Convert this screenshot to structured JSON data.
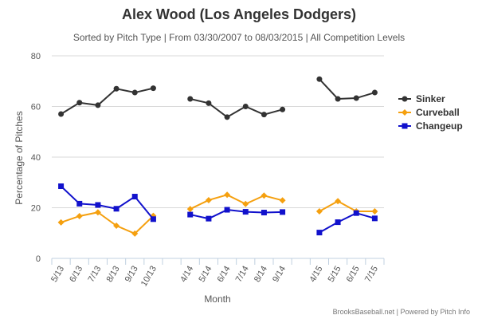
{
  "chart_data": {
    "type": "line",
    "title": "Alex Wood (Los Angeles Dodgers)",
    "subtitle": "Sorted by Pitch Type | From 03/30/2007 to 08/03/2015 | All Competition Levels",
    "xlabel": "Month",
    "ylabel": "Percentage of Pitches",
    "ylim": [
      0,
      80
    ],
    "yticks": [
      0,
      20,
      40,
      60,
      80
    ],
    "grid": true,
    "legend_position": "right",
    "categories": [
      "5/13",
      "6/13",
      "7/13",
      "8/13",
      "9/13",
      "10/13",
      "",
      "4/14",
      "5/14",
      "6/14",
      "7/14",
      "8/14",
      "9/14",
      "",
      "4/15",
      "5/15",
      "6/15",
      "7/15"
    ],
    "series": [
      {
        "name": "Sinker",
        "color": "#333333",
        "marker": "circle",
        "values": [
          57,
          61.5,
          60.5,
          67,
          65.5,
          67.2,
          null,
          63,
          61.3,
          55.8,
          60,
          56.8,
          58.8,
          null,
          70.8,
          63,
          63.3,
          65.5
        ]
      },
      {
        "name": "Curveball",
        "color": "#f5a00f",
        "marker": "diamond",
        "values": [
          14.2,
          16.7,
          18.2,
          12.9,
          9.8,
          16.8,
          null,
          19.5,
          23,
          25.1,
          21.5,
          24.8,
          22.9,
          null,
          18.6,
          22.6,
          18.6,
          18.6
        ]
      },
      {
        "name": "Changeup",
        "color": "#1111cc",
        "marker": "square",
        "values": [
          28.5,
          21.6,
          21.1,
          19.6,
          24.4,
          15.5,
          null,
          17.3,
          15.7,
          19.2,
          18.4,
          18.1,
          18.3,
          null,
          10.2,
          14.3,
          17.9,
          15.8
        ]
      }
    ]
  },
  "credit": "BrooksBaseball.net | Powered by Pitch Info"
}
